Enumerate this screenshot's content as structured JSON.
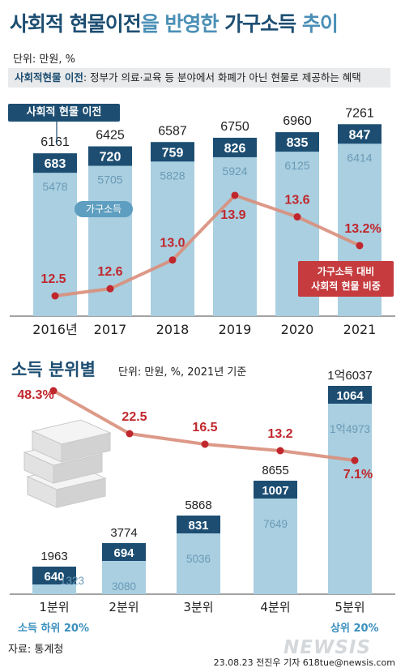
{
  "title": {
    "part1": "사회적 현물이전",
    "part2": "을 반영한 ",
    "part3": "가구소득",
    "part4": " 추이"
  },
  "unit_top": "단위: 만원, %",
  "note": {
    "label": "사회적현물 이전",
    "text": ": 정부가 의료·교육 등 분야에서 화폐가 아닌 현물로 제공하는 혜택"
  },
  "legend": {
    "transfer": "사회적 현물 이전",
    "income": "가구소득",
    "ratio_line1": "가구소득 대비",
    "ratio_line2": "사회적 현물 비중"
  },
  "section2": {
    "title": "소득 분위별",
    "unit": "단위: 만원, %, 2021년 기준"
  },
  "footer": {
    "low": "소득 하위 20%",
    "high": "상위 20%",
    "source": "자료: 통계청",
    "credit": "23.08.23 전진우 기자 618tue@newsis.com",
    "logo": "NEWSIS"
  },
  "colors": {
    "bar_light": "#a9cfe0",
    "bar_dark": "#1d4e72",
    "line": "#d98e7b",
    "dot": "#c0272d",
    "red_text": "#c0272d"
  },
  "chart_data": [
    {
      "type": "bar",
      "stacked": true,
      "categories": [
        "2016년",
        "2017",
        "2018",
        "2019",
        "2020",
        "2021"
      ],
      "totals": [
        "6161",
        "6425",
        "6587",
        "6750",
        "6960",
        "7261"
      ],
      "series": [
        {
          "name": "가구소득",
          "values": [
            5478,
            5705,
            5828,
            5924,
            6125,
            6414
          ]
        },
        {
          "name": "사회적 현물 이전",
          "values": [
            683,
            720,
            759,
            826,
            835,
            847
          ]
        }
      ],
      "line": {
        "name": "가구소득 대비 사회적 현물 비중",
        "values": [
          12.5,
          12.6,
          13.0,
          13.9,
          13.6,
          13.2
        ],
        "labels": [
          "12.5",
          "12.6",
          "13.0",
          "13.9",
          "13.6",
          "13.2%"
        ]
      }
    },
    {
      "type": "bar",
      "stacked": true,
      "categories": [
        "1분위",
        "2분위",
        "3분위",
        "4분위",
        "5분위"
      ],
      "totals": [
        "1963",
        "3774",
        "5868",
        "8655",
        "1억6037"
      ],
      "income_labels": [
        "1323",
        "3080",
        "5036",
        "7649",
        "1억4973"
      ],
      "transfer_labels": [
        "640",
        "694",
        "831",
        "1007",
        "1064"
      ],
      "series": [
        {
          "name": "가구소득",
          "values": [
            1323,
            3080,
            5036,
            7649,
            14973
          ]
        },
        {
          "name": "사회적 현물 이전",
          "values": [
            640,
            694,
            831,
            1007,
            1064
          ]
        }
      ],
      "line": {
        "values": [
          48.3,
          22.5,
          16.5,
          13.2,
          7.1
        ],
        "labels": [
          "48.3%",
          "22.5",
          "16.5",
          "13.2",
          "7.1%"
        ]
      }
    }
  ]
}
